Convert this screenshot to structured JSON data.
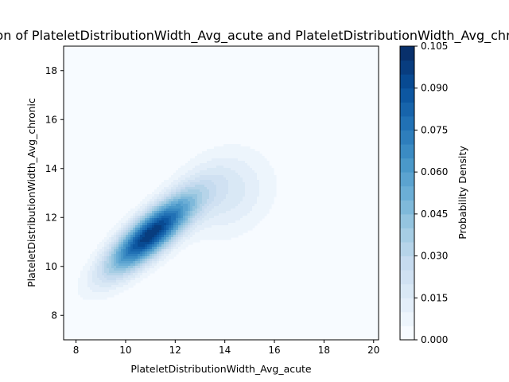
{
  "chart_data": {
    "type": "heatmap",
    "subtype": "kde-contour",
    "title": "Joint Distribution of PlateletDistributionWidth_Avg_acute and PlateletDistributionWidth_Avg_chronic",
    "xlabel": "PlateletDistributionWidth_Avg_acute",
    "ylabel": "PlateletDistributionWidth_Avg_chronic",
    "xlim": [
      7.5,
      20.2
    ],
    "ylim": [
      7.0,
      19.0
    ],
    "xticks": [
      8,
      10,
      12,
      14,
      16,
      18,
      20
    ],
    "yticks": [
      8,
      10,
      12,
      14,
      16,
      18
    ],
    "colorbar": {
      "label": "Probability Density",
      "range": [
        0.0,
        0.105
      ],
      "levels": 21,
      "ticks": [
        "0.000",
        "0.015",
        "0.030",
        "0.045",
        "0.060",
        "0.075",
        "0.090",
        "0.105"
      ],
      "colormap": "Blues"
    },
    "density": {
      "peak_value": 0.105,
      "mode": [
        11.1,
        11.4
      ],
      "main_component": {
        "mean": [
          11.0,
          11.3
        ],
        "sd": [
          1.2,
          1.1
        ],
        "correlation": 0.8
      },
      "secondary_component": {
        "mean": [
          14.0,
          13.0
        ],
        "sd": [
          1.3,
          1.2
        ],
        "correlation": 0.15
      }
    },
    "grid": false,
    "colors": {
      "low": "#f7fbff",
      "high": "#08306b"
    }
  }
}
